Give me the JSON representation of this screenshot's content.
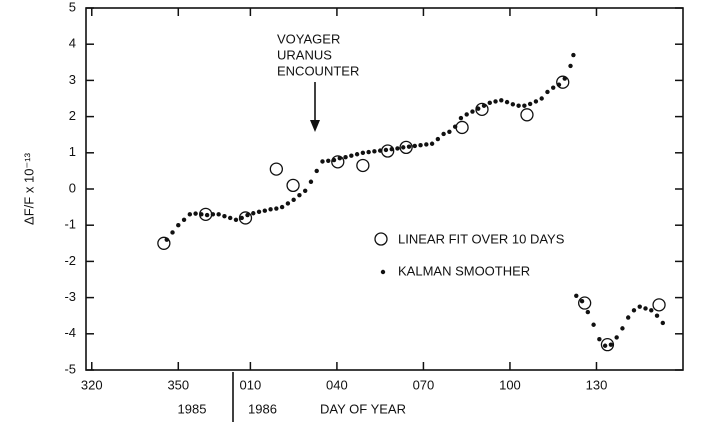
{
  "chart_data": {
    "type": "scatter",
    "y_label": "ΔF/F x 10⁻¹³",
    "x_label": "DAY OF YEAR",
    "year_labels": [
      "1985",
      "1986"
    ],
    "annotation": [
      "VOYAGER",
      "URANUS",
      "ENCOUNTER"
    ],
    "xlim": [
      318,
      525
    ],
    "ylim": [
      -5,
      5
    ],
    "xticks": [
      320,
      350,
      {
        "value": 375,
        "label": "010"
      },
      {
        "value": 405,
        "label": "040"
      },
      {
        "value": 435,
        "label": "070"
      },
      {
        "value": 465,
        "label": "100"
      },
      {
        "value": 495,
        "label": "130"
      }
    ],
    "yticks": [
      -5,
      -4,
      -3,
      -2,
      -1,
      0,
      1,
      2,
      3,
      4,
      5
    ],
    "series": [
      {
        "name": "LINEAR FIT OVER 10 DAYS",
        "color": "#111111",
        "marker": "open-circle",
        "x": [
          345,
          359.5,
          373.3,
          384,
          389.8,
          405.3,
          414,
          422.6,
          429,
          448.4,
          455.3,
          470.9,
          483.3,
          490.9,
          498.8,
          516.7
        ],
        "values": [
          -1.5,
          -0.7,
          -0.8,
          0.55,
          0.1,
          0.75,
          0.65,
          1.05,
          1.15,
          1.7,
          2.2,
          2.05,
          2.95,
          -3.15,
          -4.3,
          -3.2
        ]
      },
      {
        "name": "KALMAN SMOOTHER",
        "color": "#111111",
        "marker": "dot",
        "x": [
          346,
          348,
          350,
          352,
          354,
          356,
          358,
          360,
          362,
          364,
          366,
          368,
          370,
          372,
          374,
          376,
          378,
          380,
          382,
          384,
          386,
          388,
          390,
          392,
          394,
          396,
          398,
          400,
          402,
          404,
          406,
          408,
          410,
          412,
          414,
          416,
          418,
          420,
          422,
          424,
          426,
          428,
          430,
          432,
          434,
          436,
          438,
          440,
          442,
          444,
          446,
          448,
          450,
          452,
          454,
          456,
          458,
          460,
          462,
          464,
          466,
          468,
          470,
          472,
          474,
          476,
          478,
          480,
          482,
          484,
          486,
          487,
          488,
          490,
          492,
          494,
          496,
          498,
          500,
          502,
          504,
          506,
          508,
          510,
          512,
          514,
          516,
          518
        ],
        "values": [
          -1.4,
          -1.2,
          -1.0,
          -0.85,
          -0.7,
          -0.68,
          -0.7,
          -0.72,
          -0.7,
          -0.7,
          -0.75,
          -0.8,
          -0.85,
          -0.8,
          -0.72,
          -0.67,
          -0.63,
          -0.6,
          -0.56,
          -0.54,
          -0.5,
          -0.4,
          -0.3,
          -0.17,
          -0.05,
          0.2,
          0.5,
          0.76,
          0.78,
          0.8,
          0.85,
          0.88,
          0.92,
          0.96,
          1.0,
          1.02,
          1.04,
          1.06,
          1.08,
          1.1,
          1.12,
          1.15,
          1.17,
          1.19,
          1.21,
          1.23,
          1.25,
          1.38,
          1.52,
          1.58,
          1.72,
          1.96,
          2.06,
          2.14,
          2.22,
          2.3,
          2.38,
          2.42,
          2.45,
          2.4,
          2.34,
          2.3,
          2.3,
          2.35,
          2.42,
          2.5,
          2.68,
          2.8,
          2.88,
          3.05,
          3.4,
          3.7,
          -2.95,
          -3.1,
          -3.4,
          -3.75,
          -4.15,
          -4.33,
          -4.3,
          -4.1,
          -3.85,
          -3.55,
          -3.35,
          -3.25,
          -3.3,
          -3.35,
          -3.5,
          -3.7
        ]
      }
    ]
  }
}
